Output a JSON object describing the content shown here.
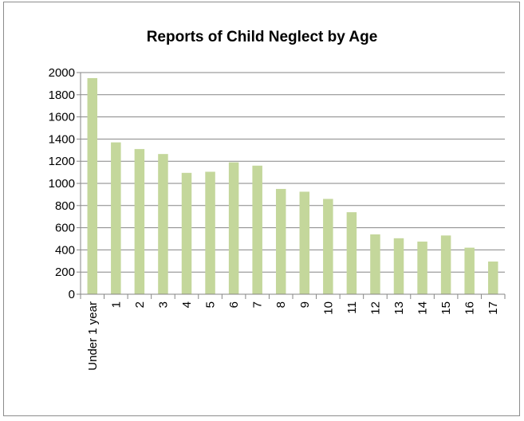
{
  "chart_data": {
    "type": "bar",
    "title": "Reports of Child Neglect by Age",
    "xlabel": "",
    "ylabel": "",
    "categories": [
      "Under 1 year",
      "1",
      "2",
      "3",
      "4",
      "5",
      "6",
      "7",
      "8",
      "9",
      "10",
      "11",
      "12",
      "13",
      "14",
      "15",
      "16",
      "17"
    ],
    "values": [
      1950,
      1370,
      1310,
      1265,
      1095,
      1105,
      1190,
      1160,
      950,
      925,
      860,
      740,
      540,
      505,
      475,
      530,
      420,
      295
    ],
    "ylim": [
      0,
      2000
    ],
    "yticks": [
      "0",
      "200",
      "400",
      "600",
      "800",
      "1000",
      "1200",
      "1400",
      "1600",
      "1800",
      "2000"
    ],
    "grid": true,
    "legend": "none",
    "colors": {
      "bar": "#c4d79b",
      "gridline": "#868686",
      "axis": "#868686"
    }
  }
}
